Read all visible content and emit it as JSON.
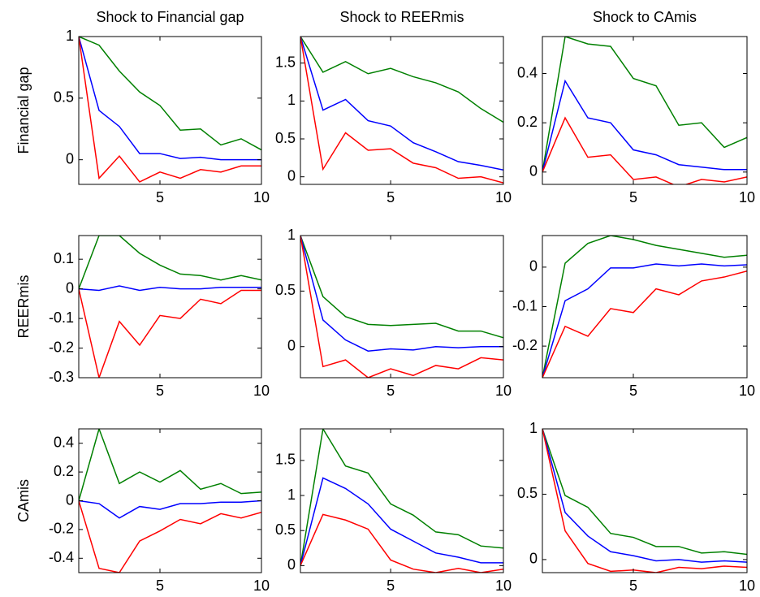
{
  "chart_data": [
    {
      "type": "line",
      "title": "Shock to Financial gap",
      "y_label": "Financial gap",
      "x": [
        1,
        2,
        3,
        4,
        5,
        6,
        7,
        8,
        9,
        10
      ],
      "xlim": [
        1,
        10
      ],
      "xticks": [
        5,
        10
      ],
      "ylim": [
        -0.2,
        1
      ],
      "yticks": [
        0,
        0.5,
        1
      ],
      "series": [
        {
          "color": "#008000",
          "values": [
            1,
            0.93,
            0.72,
            0.55,
            0.44,
            0.24,
            0.25,
            0.12,
            0.17,
            0.08
          ]
        },
        {
          "color": "#0000ff",
          "values": [
            1,
            0.4,
            0.27,
            0.05,
            0.05,
            0.01,
            0.02,
            0,
            0,
            0
          ]
        },
        {
          "color": "#ff0000",
          "values": [
            1,
            -0.15,
            0.03,
            -0.18,
            -0.1,
            -0.15,
            -0.08,
            -0.1,
            -0.05,
            -0.05
          ]
        }
      ]
    },
    {
      "type": "line",
      "title": "Shock to REERmis",
      "x": [
        1,
        2,
        3,
        4,
        5,
        6,
        7,
        8,
        9,
        10
      ],
      "xlim": [
        1,
        10
      ],
      "xticks": [
        5,
        10
      ],
      "ylim": [
        -0.1,
        1.85
      ],
      "yticks": [
        0,
        0.5,
        1,
        1.5
      ],
      "series": [
        {
          "color": "#008000",
          "values": [
            1.85,
            1.38,
            1.52,
            1.36,
            1.43,
            1.32,
            1.24,
            1.12,
            0.9,
            0.72
          ]
        },
        {
          "color": "#0000ff",
          "values": [
            1.85,
            0.88,
            1.02,
            0.74,
            0.67,
            0.45,
            0.33,
            0.2,
            0.15,
            0.09
          ]
        },
        {
          "color": "#ff0000",
          "values": [
            1.85,
            0.1,
            0.58,
            0.35,
            0.37,
            0.18,
            0.12,
            -0.02,
            0,
            -0.08
          ]
        }
      ]
    },
    {
      "type": "line",
      "title": "Shock to CAmis",
      "x": [
        1,
        2,
        3,
        4,
        5,
        6,
        7,
        8,
        9,
        10
      ],
      "xlim": [
        1,
        10
      ],
      "xticks": [
        5,
        10
      ],
      "ylim": [
        -0.05,
        0.55
      ],
      "yticks": [
        0,
        0.2,
        0.4
      ],
      "series": [
        {
          "color": "#008000",
          "values": [
            0,
            0.55,
            0.52,
            0.51,
            0.38,
            0.35,
            0.19,
            0.2,
            0.1,
            0.14
          ]
        },
        {
          "color": "#0000ff",
          "values": [
            0,
            0.37,
            0.22,
            0.2,
            0.09,
            0.07,
            0.03,
            0.02,
            0.01,
            0.01
          ]
        },
        {
          "color": "#ff0000",
          "values": [
            0,
            0.22,
            0.06,
            0.07,
            -0.03,
            -0.02,
            -0.06,
            -0.03,
            -0.04,
            -0.02
          ]
        }
      ]
    },
    {
      "type": "line",
      "y_label": "REERmis",
      "x": [
        1,
        2,
        3,
        4,
        5,
        6,
        7,
        8,
        9,
        10
      ],
      "xlim": [
        1,
        10
      ],
      "xticks": [
        5,
        10
      ],
      "ylim": [
        -0.3,
        0.18
      ],
      "yticks": [
        -0.3,
        -0.2,
        -0.1,
        0,
        0.1
      ],
      "series": [
        {
          "color": "#008000",
          "values": [
            0,
            0.18,
            0.18,
            0.12,
            0.08,
            0.05,
            0.045,
            0.03,
            0.045,
            0.03
          ]
        },
        {
          "color": "#0000ff",
          "values": [
            0,
            -0.005,
            0.01,
            -0.005,
            0.005,
            0,
            0,
            0.005,
            0.005,
            0.005
          ]
        },
        {
          "color": "#ff0000",
          "values": [
            0,
            -0.3,
            -0.11,
            -0.19,
            -0.09,
            -0.1,
            -0.035,
            -0.05,
            -0.005,
            -0.005
          ]
        }
      ]
    },
    {
      "type": "line",
      "x": [
        1,
        2,
        3,
        4,
        5,
        6,
        7,
        8,
        9,
        10
      ],
      "xlim": [
        1,
        10
      ],
      "xticks": [
        5,
        10
      ],
      "ylim": [
        -0.28,
        1
      ],
      "yticks": [
        0,
        0.5,
        1
      ],
      "series": [
        {
          "color": "#008000",
          "values": [
            1,
            0.45,
            0.27,
            0.2,
            0.19,
            0.2,
            0.21,
            0.14,
            0.14,
            0.08
          ]
        },
        {
          "color": "#0000ff",
          "values": [
            1,
            0.24,
            0.06,
            -0.04,
            -0.02,
            -0.03,
            0,
            -0.01,
            0,
            0
          ]
        },
        {
          "color": "#ff0000",
          "values": [
            1,
            -0.18,
            -0.12,
            -0.28,
            -0.2,
            -0.26,
            -0.17,
            -0.2,
            -0.1,
            -0.12
          ]
        }
      ]
    },
    {
      "type": "line",
      "x": [
        1,
        2,
        3,
        4,
        5,
        6,
        7,
        8,
        9,
        10
      ],
      "xlim": [
        1,
        10
      ],
      "xticks": [
        5,
        10
      ],
      "ylim": [
        -0.28,
        0.08
      ],
      "yticks": [
        -0.2,
        -0.1,
        0
      ],
      "series": [
        {
          "color": "#008000",
          "values": [
            -0.28,
            0.01,
            0.06,
            0.08,
            0.07,
            0.055,
            0.045,
            0.035,
            0.025,
            0.03
          ]
        },
        {
          "color": "#0000ff",
          "values": [
            -0.28,
            -0.085,
            -0.055,
            -0.002,
            -0.002,
            0.008,
            0.003,
            0.008,
            0.003,
            0.006
          ]
        },
        {
          "color": "#ff0000",
          "values": [
            -0.28,
            -0.15,
            -0.175,
            -0.105,
            -0.115,
            -0.055,
            -0.07,
            -0.035,
            -0.025,
            -0.01
          ]
        }
      ]
    },
    {
      "type": "line",
      "y_label": "CAmis",
      "x": [
        1,
        2,
        3,
        4,
        5,
        6,
        7,
        8,
        9,
        10
      ],
      "xlim": [
        1,
        10
      ],
      "xticks": [
        5,
        10
      ],
      "ylim": [
        -0.5,
        0.5
      ],
      "yticks": [
        -0.4,
        -0.2,
        0,
        0.2,
        0.4
      ],
      "series": [
        {
          "color": "#008000",
          "values": [
            0,
            0.5,
            0.12,
            0.2,
            0.13,
            0.21,
            0.08,
            0.12,
            0.05,
            0.06
          ]
        },
        {
          "color": "#0000ff",
          "values": [
            0,
            -0.02,
            -0.12,
            -0.04,
            -0.06,
            -0.02,
            -0.02,
            -0.01,
            -0.01,
            0
          ]
        },
        {
          "color": "#ff0000",
          "values": [
            0,
            -0.47,
            -0.5,
            -0.28,
            -0.21,
            -0.13,
            -0.16,
            -0.09,
            -0.12,
            -0.08
          ]
        }
      ]
    },
    {
      "type": "line",
      "x": [
        1,
        2,
        3,
        4,
        5,
        6,
        7,
        8,
        9,
        10
      ],
      "xlim": [
        1,
        10
      ],
      "xticks": [
        5,
        10
      ],
      "ylim": [
        -0.1,
        1.95
      ],
      "yticks": [
        0,
        0.5,
        1,
        1.5
      ],
      "series": [
        {
          "color": "#008000",
          "values": [
            0,
            1.95,
            1.42,
            1.32,
            0.88,
            0.72,
            0.48,
            0.44,
            0.28,
            0.25
          ]
        },
        {
          "color": "#0000ff",
          "values": [
            0,
            1.25,
            1.1,
            0.88,
            0.52,
            0.35,
            0.18,
            0.12,
            0.04,
            0.04
          ]
        },
        {
          "color": "#ff0000",
          "values": [
            0,
            0.73,
            0.65,
            0.52,
            0.08,
            -0.05,
            -0.1,
            -0.04,
            -0.1,
            -0.05
          ]
        }
      ]
    },
    {
      "type": "line",
      "x": [
        1,
        2,
        3,
        4,
        5,
        6,
        7,
        8,
        9,
        10
      ],
      "xlim": [
        1,
        10
      ],
      "xticks": [
        5,
        10
      ],
      "ylim": [
        -0.1,
        1
      ],
      "yticks": [
        0,
        0.5,
        1
      ],
      "series": [
        {
          "color": "#008000",
          "values": [
            1,
            0.49,
            0.4,
            0.2,
            0.17,
            0.1,
            0.1,
            0.05,
            0.06,
            0.04
          ]
        },
        {
          "color": "#0000ff",
          "values": [
            1,
            0.36,
            0.18,
            0.06,
            0.03,
            -0.01,
            0,
            -0.02,
            -0.01,
            -0.02
          ]
        },
        {
          "color": "#ff0000",
          "values": [
            1,
            0.22,
            -0.03,
            -0.09,
            -0.08,
            -0.1,
            -0.06,
            -0.07,
            -0.05,
            -0.06
          ]
        }
      ]
    }
  ]
}
